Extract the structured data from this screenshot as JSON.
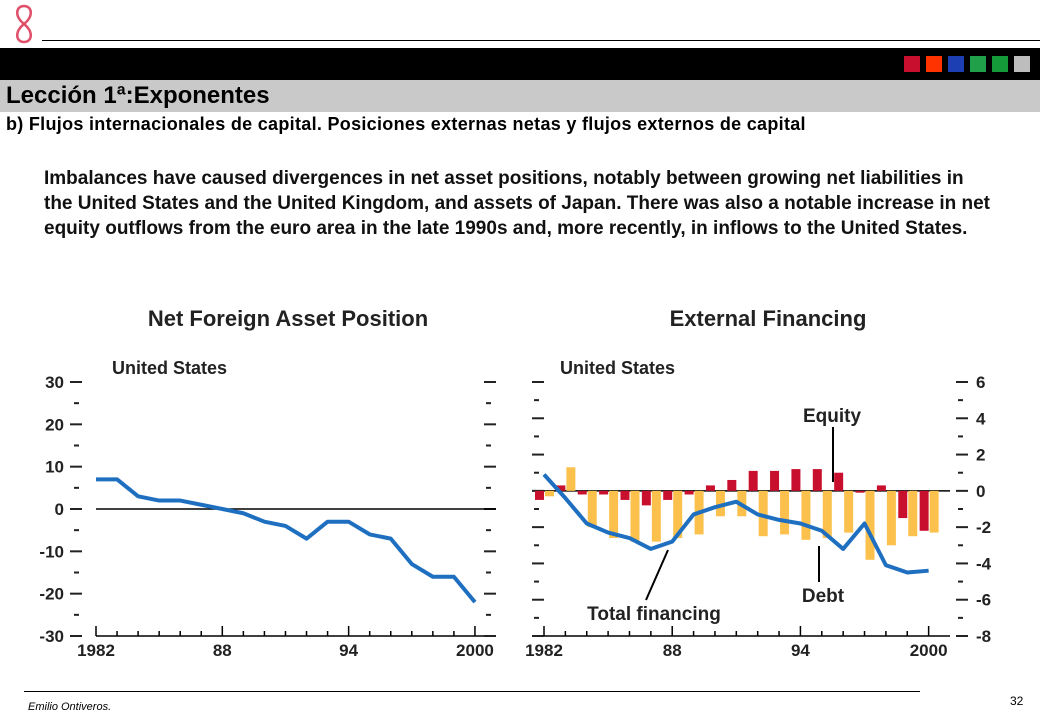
{
  "header": {
    "title": "Lección 1ª:Exponentes",
    "subtitle": "b) Flujos internacionales de capital. Posiciones externas netas y flujos externos de capital",
    "color_squares": [
      "#c8102e",
      "#ff3300",
      "#1c3fb3",
      "#21a04a",
      "#159a3a",
      "#bdbdbd"
    ]
  },
  "description": "Imbalances have caused divergences in net asset positions, notably between growing net liabilities in the United States and the United Kingdom, and assets of Japan. There was also a notable increase in net equity outflows from the euro area in the late 1990s and, more recently, in inflows to the United States.",
  "footer": {
    "author": "Emilio Ontiveros.",
    "page": "32"
  },
  "chart_data": [
    {
      "type": "line",
      "title": "Net Foreign Asset Position",
      "panel_label": "United States",
      "x_tick_labels": [
        "1982",
        "88",
        "94",
        "2000"
      ],
      "y_tick_labels": [
        "30",
        "20",
        "10",
        "0",
        "-10",
        "-20",
        "-30"
      ],
      "ylim": [
        -30,
        30
      ],
      "xlim": [
        1982,
        2001
      ],
      "grid": false,
      "series": [
        {
          "color": "#1f6fc1",
          "x": [
            1982,
            1983,
            1984,
            1985,
            1986,
            1987,
            1988,
            1989,
            1990,
            1991,
            1992,
            1993,
            1994,
            1995,
            1996,
            1997,
            1998,
            1999,
            2000
          ],
          "y": [
            7,
            7,
            3,
            2,
            2,
            1,
            0,
            -1,
            -3,
            -4,
            -7,
            -3,
            -3,
            -6,
            -7,
            -13,
            -16,
            -16,
            -22
          ]
        }
      ]
    },
    {
      "type": "bar",
      "title": "External Financing",
      "panel_label": "United States",
      "x_tick_labels": [
        "1982",
        "88",
        "94",
        "2000"
      ],
      "y_tick_labels": [
        "6",
        "4",
        "2",
        "0",
        "-2",
        "-4",
        "-6",
        "-8"
      ],
      "ylim": [
        -8,
        6
      ],
      "xlim": [
        1982,
        2001
      ],
      "grid": false,
      "annotations": [
        "Equity",
        "Debt",
        "Total financing"
      ],
      "categories": [
        1982,
        1983,
        1984,
        1985,
        1986,
        1987,
        1988,
        1989,
        1990,
        1991,
        1992,
        1993,
        1994,
        1995,
        1996,
        1997,
        1998,
        1999,
        2000
      ],
      "series": [
        {
          "color": "#c8102e",
          "values": [
            -0.5,
            0.3,
            -0.2,
            -0.2,
            -0.5,
            -0.8,
            -0.5,
            -0.2,
            0.3,
            0.6,
            1.1,
            1.1,
            1.2,
            1.2,
            1.0,
            -0.1,
            0.3,
            -1.5,
            -2.2
          ]
        },
        {
          "color": "#fcc14d",
          "values": [
            -0.3,
            1.3,
            -2.0,
            -2.6,
            -2.8,
            -2.8,
            -2.6,
            -2.4,
            -1.4,
            -1.4,
            -2.5,
            -2.4,
            -2.7,
            -2.6,
            -2.3,
            -3.8,
            -3.0,
            -2.5,
            -2.3
          ]
        },
        {
          "color": "#1f6fc1",
          "values": [
            0.9,
            -0.4,
            -1.8,
            -2.3,
            -2.6,
            -3.2,
            -2.8,
            -1.3,
            -0.9,
            -0.6,
            -1.3,
            -1.6,
            -1.8,
            -2.2,
            -3.2,
            -1.8,
            -4.1,
            -4.5,
            -4.4
          ]
        }
      ]
    }
  ]
}
